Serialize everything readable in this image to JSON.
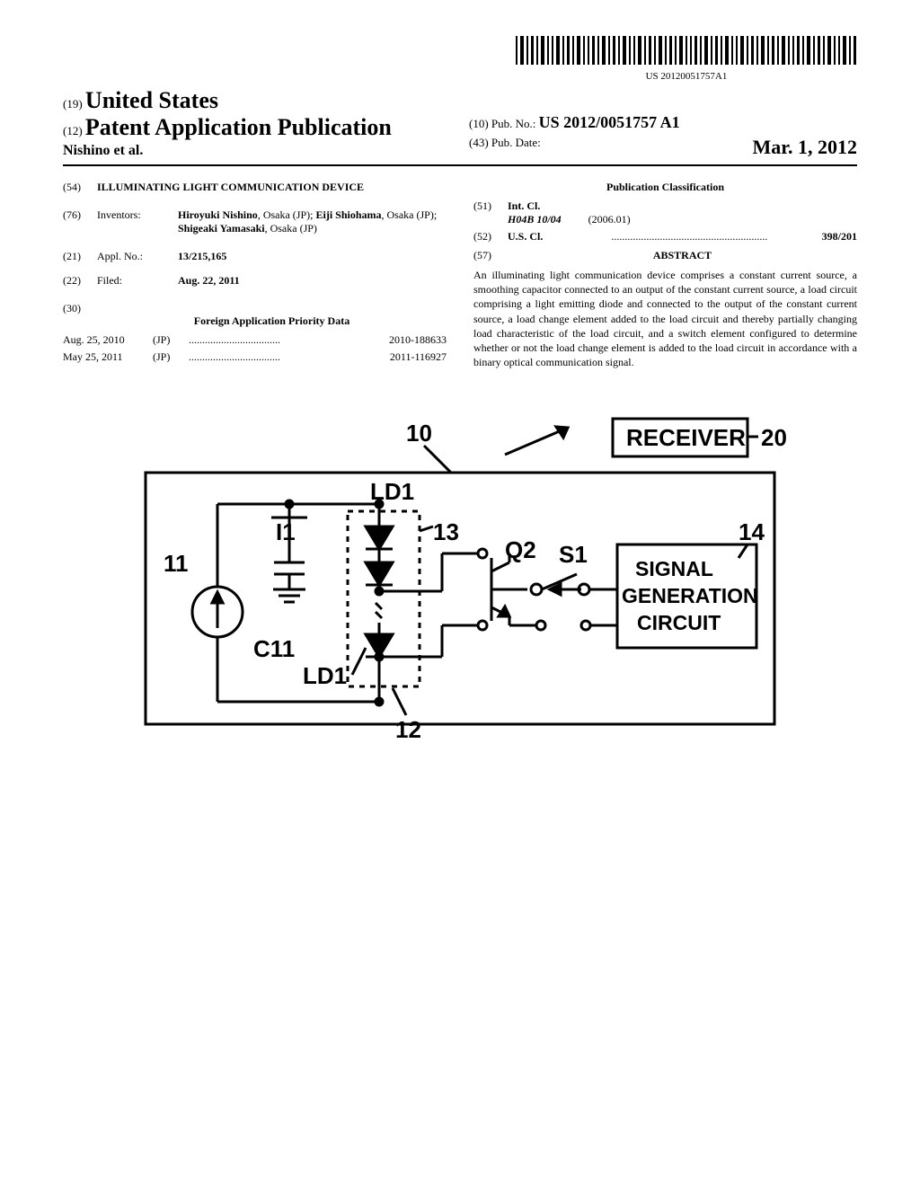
{
  "barcode": {
    "text": "US 20120051757A1"
  },
  "header": {
    "country_code": "(19)",
    "country": "United States",
    "pub_code": "(12)",
    "pub_type": "Patent Application Publication",
    "authors": "Nishino et al.",
    "pubno_code": "(10)",
    "pubno_label": "Pub. No.:",
    "pubno_value": "US 2012/0051757 A1",
    "pubdate_code": "(43)",
    "pubdate_label": "Pub. Date:",
    "pubdate_value": "Mar. 1, 2012"
  },
  "left_column": {
    "title_code": "(54)",
    "title": "ILLUMINATING LIGHT COMMUNICATION DEVICE",
    "inventors_code": "(76)",
    "inventors_label": "Inventors:",
    "inventors_value": "Hiroyuki Nishino, Osaka (JP); Eiji Shiohama, Osaka (JP); Shigeaki Yamasaki, Osaka (JP)",
    "appl_code": "(21)",
    "appl_label": "Appl. No.:",
    "appl_value": "13/215,165",
    "filed_code": "(22)",
    "filed_label": "Filed:",
    "filed_value": "Aug. 22, 2011",
    "priority_code": "(30)",
    "priority_header": "Foreign Application Priority Data",
    "priority_rows": [
      {
        "date": "Aug. 25, 2010",
        "country": "(JP)",
        "dots": "..................................",
        "number": "2010-188633"
      },
      {
        "date": "May 25, 2011",
        "country": "(JP)",
        "dots": "..................................",
        "number": "2011-116927"
      }
    ]
  },
  "right_column": {
    "classification_header": "Publication Classification",
    "intcl_code": "(51)",
    "intcl_label": "Int. Cl.",
    "intcl_value": "H04B 10/04",
    "intcl_date": "(2006.01)",
    "uscl_code": "(52)",
    "uscl_label": "U.S. Cl.",
    "uscl_dots": "..........................................................",
    "uscl_value": "398/201",
    "abstract_code": "(57)",
    "abstract_header": "ABSTRACT",
    "abstract_text": "An illuminating light communication device comprises a constant current source, a smoothing capacitor connected to an output of the constant current source, a load circuit comprising a light emitting diode and connected to the output of the constant current source, a load change element added to the load circuit and thereby partially changing load characteristic of the load circuit, and a switch element configured to determine whether or not the load change element is added to the load circuit in accordance with a binary optical communication signal."
  },
  "figure": {
    "labels": {
      "ref_10": "10",
      "ref_11": "11",
      "ref_12": "12",
      "ref_13": "13",
      "ref_14": "14",
      "ref_20": "20",
      "I1": "I1",
      "C11": "C11",
      "LD1_top": "LD1",
      "LD1_bottom": "LD1",
      "Q2": "Q2",
      "S1": "S1",
      "receiver": "RECEIVER",
      "signal_gen_1": "SIGNAL",
      "signal_gen_2": "GENERATION",
      "signal_gen_3": "CIRCUIT"
    },
    "colors": {
      "stroke": "#000000",
      "fill": "#ffffff"
    },
    "stroke_width": 3
  }
}
